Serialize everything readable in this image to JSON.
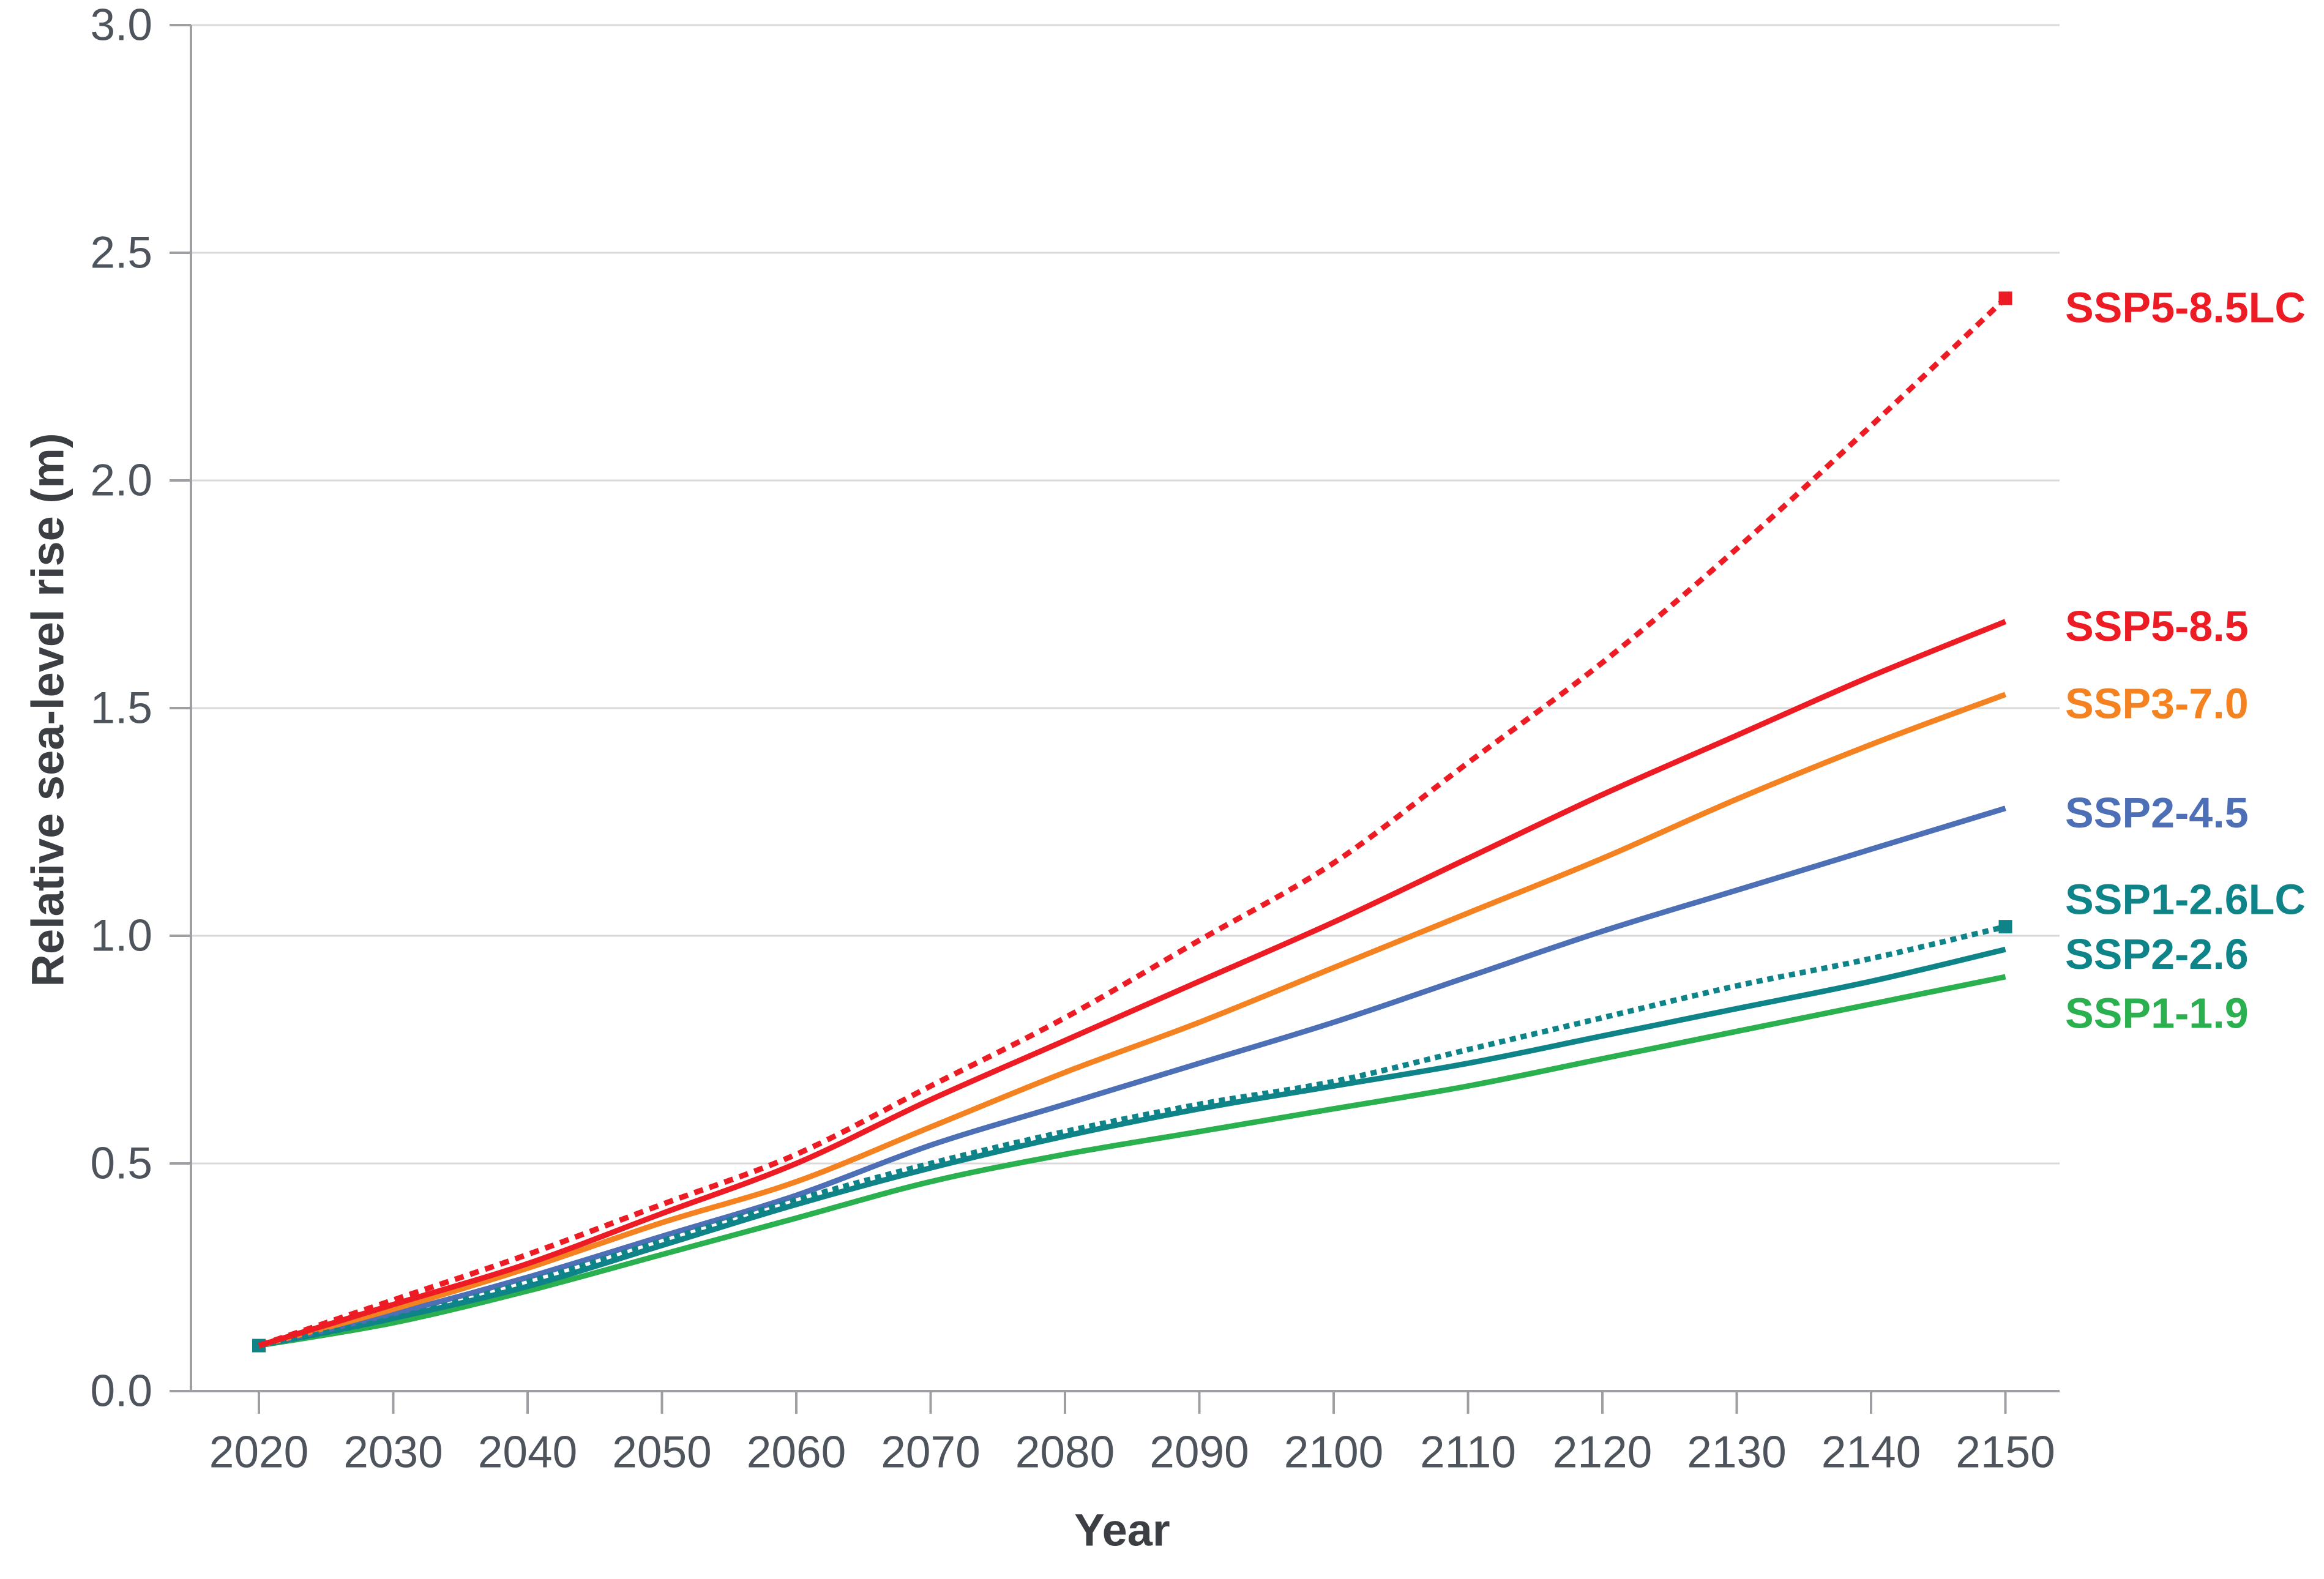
{
  "chart_data": {
    "type": "line",
    "title": "",
    "xlabel": "Year",
    "ylabel": "Relative sea-level rise (m)",
    "x": [
      2020,
      2030,
      2040,
      2050,
      2060,
      2070,
      2080,
      2090,
      2100,
      2110,
      2120,
      2130,
      2140,
      2150
    ],
    "xlim": [
      2015,
      2154
    ],
    "ylim": [
      0.0,
      3.0
    ],
    "yticks": [
      "0.0",
      "0.5",
      "1.0",
      "1.5",
      "2.0",
      "2.5",
      "3.0"
    ],
    "ytick_values": [
      0.0,
      0.5,
      1.0,
      1.5,
      2.0,
      2.5,
      3.0
    ],
    "grid": "horizontal-only",
    "legend_position": "right-of-line-ends",
    "units": "m",
    "series": [
      {
        "id": "ssp1-1.9",
        "label": "SSP1-1.9",
        "color": "#2ab04e",
        "style": "solid",
        "values": [
          0.1,
          0.15,
          0.22,
          0.3,
          0.38,
          0.46,
          0.52,
          0.57,
          0.62,
          0.67,
          0.73,
          0.79,
          0.85,
          0.91
        ],
        "label_value": 0.83,
        "start_marker": false,
        "end_marker": false
      },
      {
        "id": "ssp2-2.6",
        "label": "SSP2-2.6",
        "color": "#0e8489",
        "style": "solid",
        "values": [
          0.1,
          0.16,
          0.23,
          0.32,
          0.41,
          0.49,
          0.56,
          0.62,
          0.67,
          0.72,
          0.78,
          0.84,
          0.9,
          0.97
        ],
        "label_value": 0.96,
        "start_marker": false,
        "end_marker": false
      },
      {
        "id": "ssp2-4.5",
        "label": "SSP2-4.5",
        "color": "#4d6fb5",
        "style": "solid",
        "values": [
          0.1,
          0.17,
          0.25,
          0.34,
          0.43,
          0.54,
          0.63,
          0.72,
          0.81,
          0.91,
          1.01,
          1.1,
          1.19,
          1.28
        ],
        "label_value": 1.27,
        "start_marker": false,
        "end_marker": false
      },
      {
        "id": "ssp3-7.0",
        "label": "SSP3-7.0",
        "color": "#f58220",
        "style": "solid",
        "values": [
          0.1,
          0.18,
          0.27,
          0.37,
          0.46,
          0.58,
          0.7,
          0.81,
          0.93,
          1.05,
          1.17,
          1.3,
          1.42,
          1.53
        ],
        "label_value": 1.51,
        "start_marker": false,
        "end_marker": false
      },
      {
        "id": "ssp1-2.6lc",
        "label": "SSP1-2.6LC",
        "color": "#0e8489",
        "style": "dotted",
        "values": [
          0.1,
          0.16,
          0.24,
          0.33,
          0.42,
          0.5,
          0.57,
          0.63,
          0.68,
          0.75,
          0.82,
          0.89,
          0.95,
          1.02
        ],
        "label_value": 1.08,
        "start_marker": true,
        "end_marker": true
      },
      {
        "id": "ssp5-8.5",
        "label": "SSP5-8.5",
        "color": "#ed1c24",
        "style": "solid",
        "values": [
          0.1,
          0.19,
          0.28,
          0.39,
          0.5,
          0.64,
          0.77,
          0.9,
          1.03,
          1.17,
          1.31,
          1.44,
          1.57,
          1.69
        ],
        "label_value": 1.68,
        "start_marker": false,
        "end_marker": false
      },
      {
        "id": "ssp5-8.5lc",
        "label": "SSP5-8.5LC",
        "color": "#ed1c24",
        "style": "dotted",
        "values": [
          0.1,
          0.2,
          0.3,
          0.41,
          0.52,
          0.67,
          0.82,
          0.99,
          1.16,
          1.38,
          1.6,
          1.85,
          2.12,
          2.4
        ],
        "label_value": 2.38,
        "start_marker": false,
        "end_marker": true
      }
    ]
  },
  "colors": {
    "background": "#ffffff",
    "gridline": "#d9d9d9",
    "axis_line": "#9d9fa2",
    "tick_mark": "#9d9fa2",
    "tick_label": "#4e545c",
    "axis_title": "#3b3e42"
  }
}
